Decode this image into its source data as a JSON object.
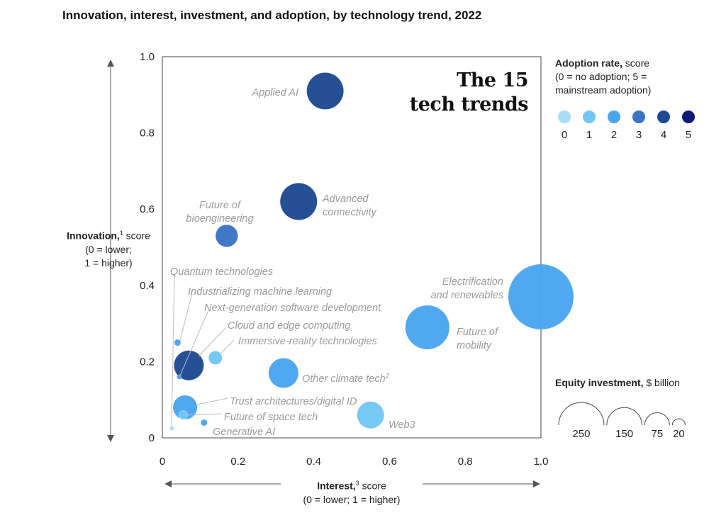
{
  "title": "Innovation, interest, investment, and adoption, by technology trend, 2022",
  "chart_data": {
    "type": "scatter",
    "subtype": "bubble",
    "title": "Innovation, interest, investment, and adoption, by technology trend, 2022",
    "inset_title": [
      "The 15",
      "tech trends"
    ],
    "xlabel": {
      "bold": "Interest,",
      "sup": "3",
      "rest": " score",
      "note": "(0 = lower; 1 = higher)"
    },
    "ylabel": {
      "bold": "Innovation,",
      "sup": "1",
      "rest": " score",
      "note1": "(0 = lower;",
      "note2": "1 = higher)"
    },
    "xlim": [
      0,
      1.0
    ],
    "ylim": [
      0,
      1.0
    ],
    "xticks": [
      "0",
      "0.2",
      "0.4",
      "0.6",
      "0.8",
      "1.0"
    ],
    "yticks": [
      "0",
      "0.2",
      "0.4",
      "0.6",
      "0.8",
      "1.0"
    ],
    "grid": false,
    "color_legend": {
      "title_bold": "Adoption rate,",
      "title_rest": " score",
      "note1": "(0 = no adoption; 5 =",
      "note2": "mainstream adoption)",
      "levels": [
        "0",
        "1",
        "2",
        "3",
        "4",
        "5"
      ],
      "colors": [
        "#a8dcfa",
        "#72c6f5",
        "#4aa5ef",
        "#3a74c4",
        "#1f4a93",
        "#0e1a78"
      ]
    },
    "size_legend": {
      "title_bold": "Equity investment,",
      "title_rest": " $ billion",
      "values": [
        250,
        150,
        75,
        20
      ],
      "labels": [
        "250",
        "150",
        "75",
        "20"
      ]
    },
    "points": [
      {
        "name": "Applied AI",
        "interest": 0.43,
        "innovation": 0.91,
        "adoption": 4,
        "investment": 165
      },
      {
        "name": "Advanced connectivity",
        "interest": 0.36,
        "innovation": 0.62,
        "adoption": 4,
        "investment": 166
      },
      {
        "name": "Future of bioengineering",
        "interest": 0.17,
        "innovation": 0.53,
        "adoption": 3,
        "investment": 60
      },
      {
        "name": "Electrification and renewables",
        "interest": 1.0,
        "innovation": 0.37,
        "adoption": 2,
        "investment": 518
      },
      {
        "name": "Future of mobility",
        "interest": 0.7,
        "innovation": 0.29,
        "adoption": 2,
        "investment": 236
      },
      {
        "name": "Other climate tech",
        "sup": "2",
        "interest": 0.32,
        "innovation": 0.17,
        "adoption": 2,
        "investment": 108
      },
      {
        "name": "Web3",
        "interest": 0.55,
        "innovation": 0.06,
        "adoption": 1,
        "investment": 88
      },
      {
        "name": "Immersive-reality technologies",
        "interest": 0.14,
        "innovation": 0.21,
        "adoption": 1,
        "investment": 22
      },
      {
        "name": "Cloud and edge computing",
        "interest": 0.07,
        "innovation": 0.19,
        "adoption": 4,
        "investment": 108
      },
      {
        "name": "Industrializing machine learning",
        "interest": 0.04,
        "innovation": 0.25,
        "adoption": 2,
        "investment": 5
      },
      {
        "name": "Next-generation software development",
        "interest": 0.045,
        "innovation": 0.16,
        "adoption": 2,
        "investment": 3
      },
      {
        "name": "Trust architectures/digital ID",
        "interest": 0.06,
        "innovation": 0.08,
        "adoption": 2,
        "investment": 71
      },
      {
        "name": "Future of space tech",
        "interest": 0.055,
        "innovation": 0.06,
        "adoption": 1,
        "investment": 9
      },
      {
        "name": "Generative AI",
        "interest": 0.11,
        "innovation": 0.04,
        "adoption": 2,
        "investment": 5
      },
      {
        "name": "Quantum technologies",
        "interest": 0.025,
        "innovation": 0.025,
        "adoption": 0,
        "investment": 2
      }
    ]
  }
}
